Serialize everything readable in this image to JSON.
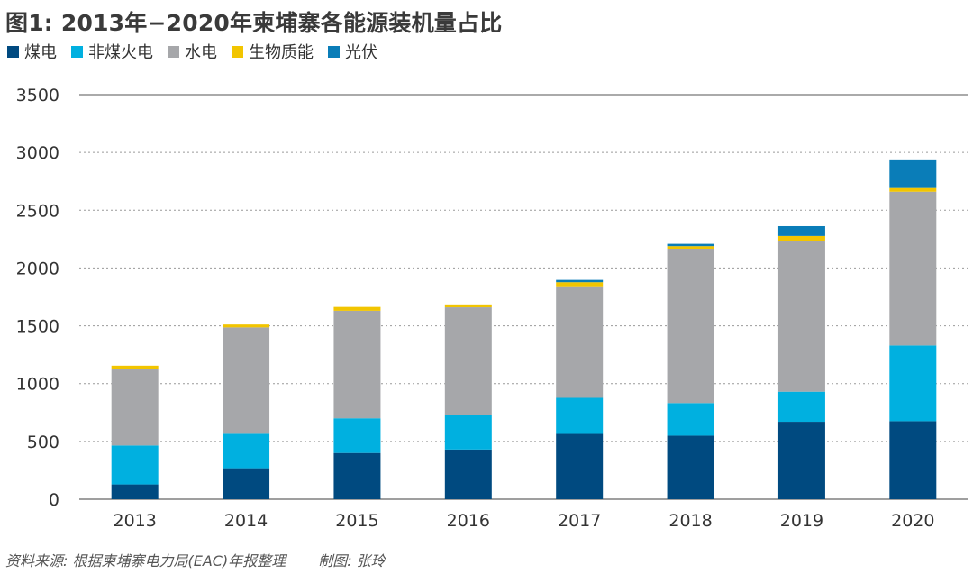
{
  "title": "图1: 2013年−2020年柬埔寨各能源装机量占比",
  "source": "资料来源: 根据柬埔寨电力局(EAC)年报整理",
  "credit": "制图: 张玲",
  "chart_data": {
    "type": "bar",
    "stacked": true,
    "categories": [
      "2013",
      "2014",
      "2015",
      "2016",
      "2017",
      "2018",
      "2019",
      "2020"
    ],
    "series": [
      {
        "name": "煤电",
        "color": "#004a80",
        "values": [
          128,
          268,
          400,
          430,
          565,
          550,
          670,
          675
        ]
      },
      {
        "name": "非煤火电",
        "color": "#00b0e0",
        "values": [
          337,
          298,
          300,
          300,
          312,
          282,
          260,
          655
        ]
      },
      {
        "name": "水电",
        "color": "#a6a7aa",
        "values": [
          665,
          920,
          930,
          930,
          965,
          1335,
          1305,
          1330
        ]
      },
      {
        "name": "生物质能",
        "color": "#f2c500",
        "values": [
          25,
          25,
          33,
          25,
          35,
          22,
          42,
          32
        ]
      },
      {
        "name": "光伏",
        "color": "#0a7db8",
        "values": [
          0,
          0,
          0,
          0,
          20,
          20,
          85,
          240
        ]
      }
    ],
    "ylim": [
      0,
      3500
    ],
    "yticks": [
      0,
      500,
      1000,
      1500,
      2000,
      2500,
      3000,
      3500
    ],
    "grid": true,
    "legend": "top-left"
  }
}
